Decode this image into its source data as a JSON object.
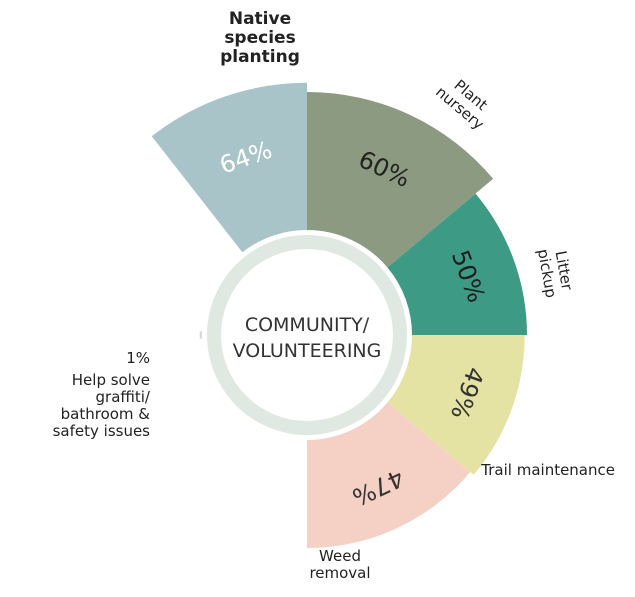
{
  "chart_data": {
    "type": "radial-bar",
    "center_label": "COMMUNITY/ VOLUNTEERING",
    "categories": [
      "Native species planting",
      "Plant nursery",
      "Litter pickup",
      "Trail maintenance",
      "Weed removal",
      "Help solve graffiti/ bathroom & safety issues"
    ],
    "values": [
      64,
      60,
      50,
      49,
      47,
      1
    ],
    "value_labels": [
      "64%",
      "60%",
      "50%",
      "49%",
      "47%",
      "1%"
    ],
    "colors": [
      "#a9c4c9",
      "#8b9a80",
      "#3d9a84",
      "#e4e3a3",
      "#f5d0c4",
      "#d8d8d8"
    ]
  }
}
